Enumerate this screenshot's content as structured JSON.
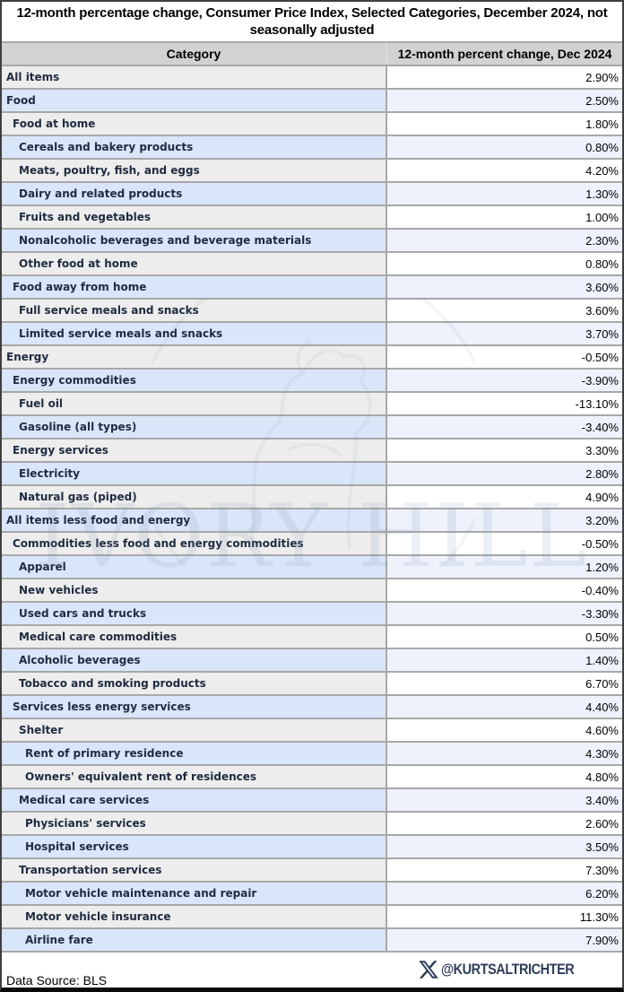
{
  "title": "12-month percentage change, Consumer Price Index, Selected Categories, December 2024, not seasonally adjusted",
  "chart_data": {
    "type": "table",
    "title": "12-month percentage change, Consumer Price Index, Selected Categories, December 2024, not seasonally adjusted",
    "columns": [
      "Category",
      "12-month percent change, Dec 2024"
    ],
    "rows": [
      {
        "category": "All items",
        "indent": 0,
        "value": "2.90%"
      },
      {
        "category": "Food",
        "indent": 0,
        "value": "2.50%"
      },
      {
        "category": "Food at home",
        "indent": 1,
        "value": "1.80%"
      },
      {
        "category": "Cereals and bakery products",
        "indent": 2,
        "value": "0.80%"
      },
      {
        "category": "Meats, poultry, fish, and eggs",
        "indent": 2,
        "value": "4.20%"
      },
      {
        "category": "Dairy and related products",
        "indent": 2,
        "value": "1.30%"
      },
      {
        "category": "Fruits and vegetables",
        "indent": 2,
        "value": "1.00%"
      },
      {
        "category": "Nonalcoholic beverages and beverage materials",
        "indent": 2,
        "value": "2.30%"
      },
      {
        "category": "Other food at home",
        "indent": 2,
        "value": "0.80%"
      },
      {
        "category": "Food away from home",
        "indent": 1,
        "value": "3.60%"
      },
      {
        "category": "Full service meals and snacks",
        "indent": 2,
        "value": "3.60%"
      },
      {
        "category": "Limited service meals and snacks",
        "indent": 2,
        "value": "3.70%"
      },
      {
        "category": "Energy",
        "indent": 0,
        "value": "-0.50%"
      },
      {
        "category": "Energy commodities",
        "indent": 1,
        "value": "-3.90%"
      },
      {
        "category": "Fuel oil",
        "indent": 2,
        "value": "-13.10%"
      },
      {
        "category": "Gasoline (all types)",
        "indent": 2,
        "value": "-3.40%"
      },
      {
        "category": "Energy services",
        "indent": 1,
        "value": "3.30%"
      },
      {
        "category": "Electricity",
        "indent": 2,
        "value": "2.80%"
      },
      {
        "category": "Natural gas (piped)",
        "indent": 2,
        "value": "4.90%"
      },
      {
        "category": "All items less food and energy",
        "indent": 0,
        "value": "3.20%"
      },
      {
        "category": "Commodities less food and energy commodities",
        "indent": 1,
        "value": "-0.50%"
      },
      {
        "category": "Apparel",
        "indent": 2,
        "value": "1.20%"
      },
      {
        "category": "New vehicles",
        "indent": 2,
        "value": "-0.40%"
      },
      {
        "category": "Used cars and trucks",
        "indent": 2,
        "value": "-3.30%"
      },
      {
        "category": "Medical care commodities",
        "indent": 2,
        "value": "0.50%"
      },
      {
        "category": "Alcoholic beverages",
        "indent": 2,
        "value": "1.40%"
      },
      {
        "category": "Tobacco and smoking products",
        "indent": 2,
        "value": "6.70%"
      },
      {
        "category": "Services less energy services",
        "indent": 1,
        "value": "4.40%"
      },
      {
        "category": "Shelter",
        "indent": 2,
        "value": "4.60%"
      },
      {
        "category": "Rent of primary residence",
        "indent": 3,
        "value": "4.30%"
      },
      {
        "category": "Owners' equivalent rent of residences",
        "indent": 3,
        "value": "4.80%"
      },
      {
        "category": "Medical care services",
        "indent": 2,
        "value": "3.40%"
      },
      {
        "category": "Physicians' services",
        "indent": 3,
        "value": "2.60%"
      },
      {
        "category": "Hospital services",
        "indent": 3,
        "value": "3.50%"
      },
      {
        "category": "Transportation services",
        "indent": 2,
        "value": "7.30%"
      },
      {
        "category": "Motor vehicle maintenance and repair",
        "indent": 3,
        "value": "6.20%"
      },
      {
        "category": "Motor vehicle insurance",
        "indent": 3,
        "value": "11.30%"
      },
      {
        "category": "Airline fare",
        "indent": 3,
        "value": "7.90%"
      }
    ]
  },
  "header": {
    "category_label": "Category",
    "value_label": "12-month percent change, Dec 2024"
  },
  "footer": {
    "source": "Data Source: BLS",
    "handle": "@KURTSALTRICHTER",
    "x_icon": "x-logo"
  },
  "watermark": "IVORY HILL",
  "colors": {
    "row_gray_category": "#ededed",
    "row_gray_value": "#ffffff",
    "row_blue_category": "#d9e5f9",
    "row_blue_value": "#edf2fc",
    "grid_border": "#a8a8a8",
    "header_bg": "#d2d2d2",
    "category_text": "#1e2b40",
    "value_text": "#000000",
    "credit_navy": "#2e3d59"
  }
}
